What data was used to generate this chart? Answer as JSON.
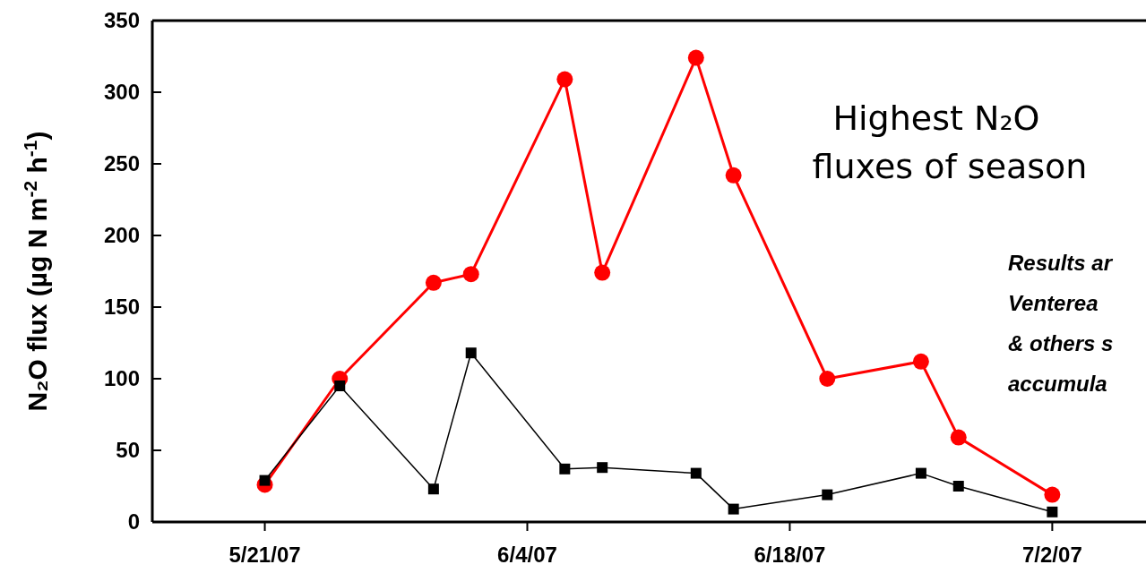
{
  "chart_data": {
    "type": "line",
    "ylabel": "N₂O flux (µg N m$^{-2}$ h$^{-1}$)",
    "xlim": [
      "2007-05-15",
      "2007-07-07"
    ],
    "xticks": [
      {
        "value": "2007-05-21",
        "label": "5/21/07"
      },
      {
        "value": "2007-06-04",
        "label": "6/4/07"
      },
      {
        "value": "2007-06-18",
        "label": "6/18/07"
      },
      {
        "value": "2007-07-02",
        "label": "7/2/07"
      }
    ],
    "ylim": [
      0,
      350
    ],
    "yticks": [
      0,
      50,
      100,
      150,
      200,
      250,
      300,
      350
    ],
    "x": [
      "2007-05-21",
      "2007-05-25",
      "2007-05-30",
      "2007-06-01",
      "2007-06-06",
      "2007-06-08",
      "2007-06-13",
      "2007-06-15",
      "2007-06-20",
      "2007-06-25",
      "2007-06-27",
      "2007-07-02"
    ],
    "series": [
      {
        "color": "#ff0000",
        "marker": "circle",
        "values": [
          26,
          100,
          167,
          173,
          309,
          174,
          324,
          242,
          100,
          112,
          59,
          19
        ]
      },
      {
        "color": "#000000",
        "marker": "square",
        "values": [
          29,
          95,
          23,
          118,
          37,
          38,
          34,
          9,
          19,
          34,
          25,
          7
        ]
      }
    ],
    "annotations": [
      "Highest N₂O fluxes of season",
      "Results ar Venterea & others s accumula"
    ]
  }
}
